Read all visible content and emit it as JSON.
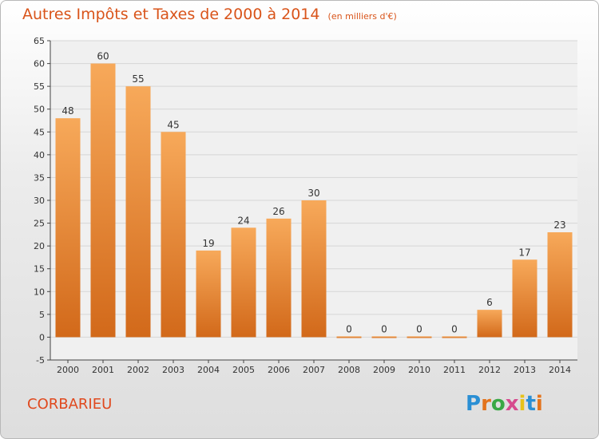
{
  "title": "Autres Impôts et Taxes de 2000 à 2014",
  "subtitle": "(en milliers d'€)",
  "place": "CORBARIEU",
  "logo": {
    "text": "Proxiti",
    "colors": [
      "#2a8fd4",
      "#e3731c",
      "#3aa845",
      "#d64b8e",
      "#e6c21a",
      "#2a8fd4",
      "#e3731c"
    ]
  },
  "chart_data": {
    "type": "bar",
    "categories": [
      "2000",
      "2001",
      "2002",
      "2003",
      "2004",
      "2005",
      "2006",
      "2007",
      "2008",
      "2009",
      "2010",
      "2011",
      "2012",
      "2013",
      "2014"
    ],
    "values": [
      48,
      60,
      55,
      45,
      19,
      24,
      26,
      30,
      0,
      0,
      0,
      0,
      6,
      17,
      23
    ],
    "ylim": [
      -5,
      65
    ],
    "yticks": [
      -5,
      0,
      5,
      10,
      15,
      20,
      25,
      30,
      35,
      40,
      45,
      50,
      55,
      60,
      65
    ],
    "grid": true,
    "colors": {
      "bar_top": "#f7a95a",
      "bar_bottom": "#d2691a",
      "grid": "#d6d6d6",
      "axis": "#444444"
    }
  }
}
